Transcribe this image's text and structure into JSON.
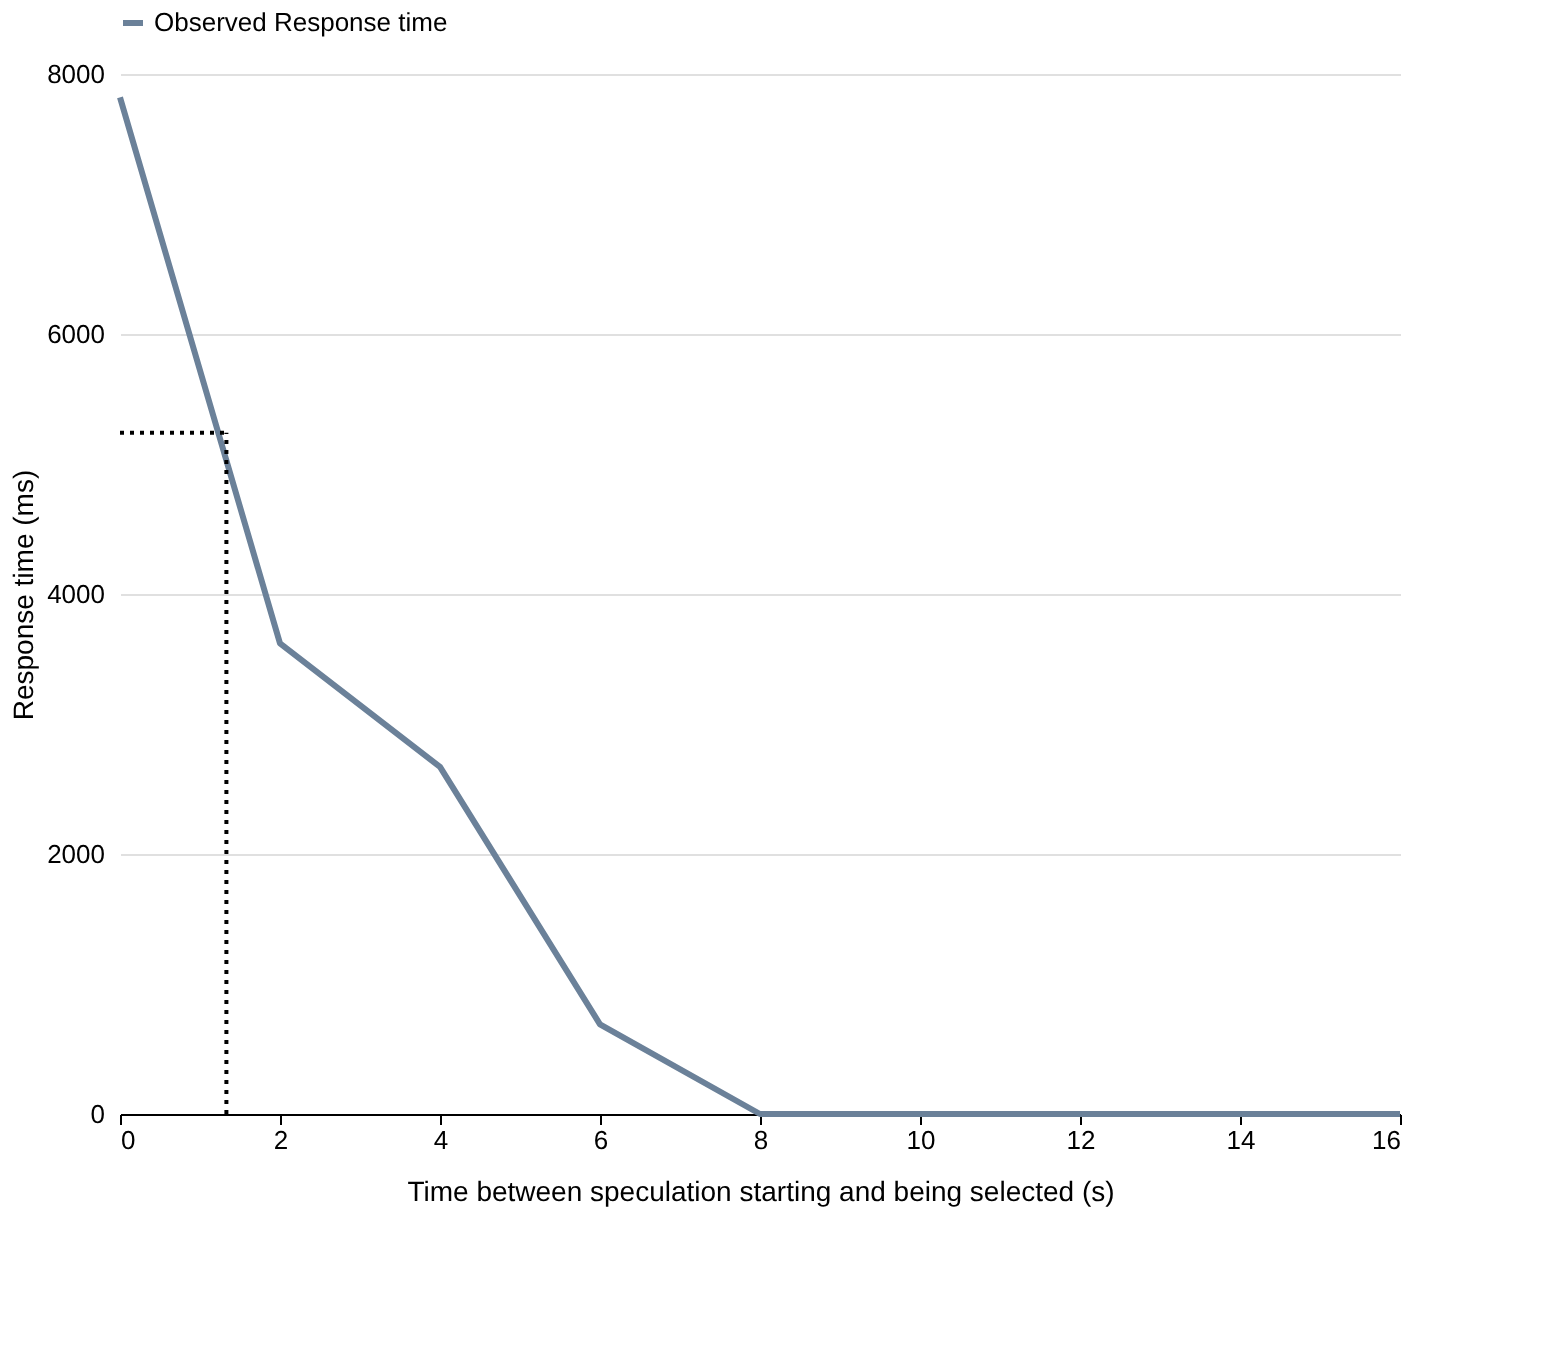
{
  "chart_data": {
    "type": "line",
    "xlabel": "Time between speculation starting and being selected (s)",
    "ylabel": "Response time (ms)",
    "x": [
      0,
      2,
      4,
      6,
      8,
      10,
      12,
      14,
      16
    ],
    "series": [
      {
        "name": "Observed Response time",
        "color": "#6b8199",
        "values": [
          7820,
          3620,
          2670,
          690,
          0,
          0,
          0,
          0,
          0
        ]
      }
    ],
    "xlim": [
      0,
      16
    ],
    "xticks": [
      0,
      2,
      4,
      6,
      8,
      10,
      12,
      14,
      16
    ],
    "ylim": [
      0,
      8000
    ],
    "yticks": [
      0,
      2000,
      4000,
      6000,
      8000
    ],
    "ref_lines": [
      {
        "axis": "x",
        "value": 1.33,
        "color": "#000000",
        "line_style": "dotted"
      },
      {
        "axis": "y",
        "value": 5240,
        "color": "#000000",
        "line_style": "dotted"
      }
    ],
    "grid": "y",
    "legend": "top",
    "marker": "none",
    "line_style": "solid"
  }
}
